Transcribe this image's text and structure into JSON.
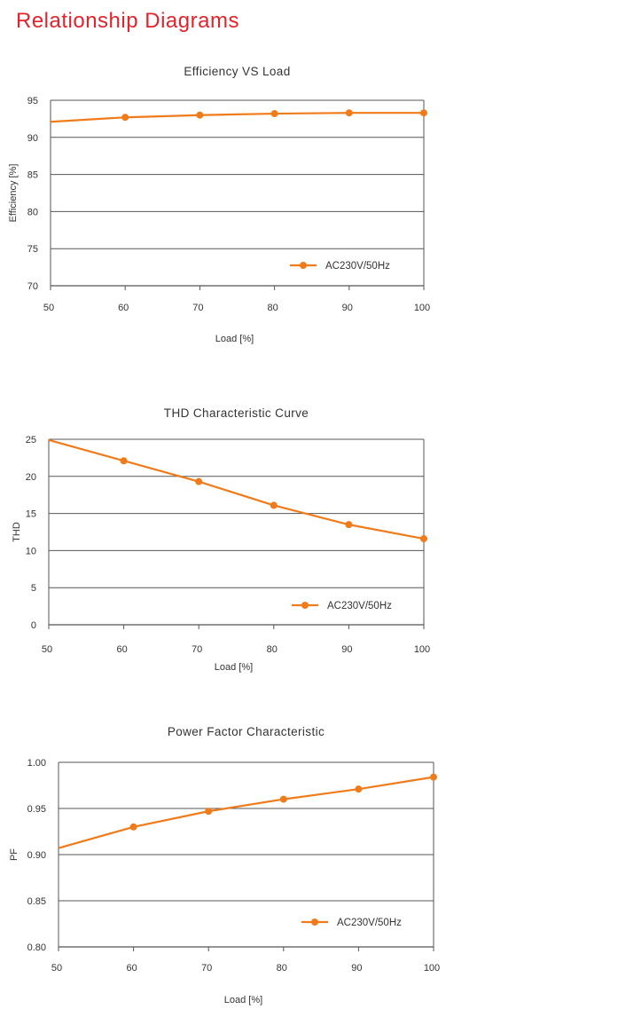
{
  "page": {
    "title": "Relationship Diagrams",
    "title_color": "#e0242c"
  },
  "colors": {
    "series": "#ef7b1a",
    "axis": "#555555",
    "grid": "#555555"
  },
  "chart_data": [
    {
      "type": "line",
      "title": "Efficiency VS Load",
      "xlabel": "Load [%]",
      "ylabel": "Efficiency [%]",
      "xlim": [
        50,
        100
      ],
      "ylim": [
        70,
        95
      ],
      "xticks": [
        50,
        60,
        70,
        80,
        90,
        100
      ],
      "yticks": [
        70,
        75,
        80,
        85,
        90,
        95
      ],
      "xtick_labels": [
        "50",
        "60",
        "70",
        "80",
        "90",
        "100"
      ],
      "ytick_labels": [
        "70",
        "75",
        "80",
        "85",
        "90",
        "95"
      ],
      "grid": "horizontal",
      "legend_position": "bottom-right",
      "series": [
        {
          "name": "AC230V/50Hz",
          "x": [
            50,
            60,
            70,
            80,
            90,
            100
          ],
          "y": [
            92.1,
            92.7,
            93.0,
            93.2,
            93.3,
            93.3
          ],
          "markers": [
            false,
            true,
            true,
            true,
            true,
            true
          ]
        }
      ]
    },
    {
      "type": "line",
      "title": "THD Characteristic Curve",
      "xlabel": "Load [%]",
      "ylabel": "THD",
      "xlim": [
        50,
        100
      ],
      "ylim": [
        0,
        25
      ],
      "xticks": [
        50,
        60,
        70,
        80,
        90,
        100
      ],
      "yticks": [
        0,
        5,
        10,
        15,
        20,
        25
      ],
      "xtick_labels": [
        "50",
        "60",
        "70",
        "80",
        "90",
        "100"
      ],
      "ytick_labels": [
        "0",
        "5",
        "10",
        "15",
        "20",
        "25"
      ],
      "grid": "horizontal",
      "legend_position": "bottom-right",
      "series": [
        {
          "name": "AC230V/50Hz",
          "x": [
            50,
            60,
            70,
            80,
            90,
            100
          ],
          "y": [
            24.9,
            22.1,
            19.3,
            16.1,
            13.5,
            11.6
          ],
          "markers": [
            false,
            true,
            true,
            true,
            true,
            true
          ]
        }
      ]
    },
    {
      "type": "line",
      "title": "Power Factor Characteristic",
      "xlabel": "Load [%]",
      "ylabel": "PF",
      "xlim": [
        50,
        100
      ],
      "ylim": [
        0.8,
        1.0
      ],
      "xticks": [
        50,
        60,
        70,
        80,
        90,
        100
      ],
      "yticks": [
        0.8,
        0.85,
        0.9,
        0.95,
        1.0
      ],
      "xtick_labels": [
        "50",
        "60",
        "70",
        "80",
        "90",
        "100"
      ],
      "ytick_labels": [
        "0.80",
        "0.85",
        "0.90",
        "0.95",
        "1.00"
      ],
      "grid": "horizontal",
      "legend_position": "bottom-right",
      "series": [
        {
          "name": "AC230V/50Hz",
          "x": [
            50,
            60,
            70,
            80,
            90,
            100
          ],
          "y": [
            0.907,
            0.93,
            0.947,
            0.96,
            0.971,
            0.984
          ],
          "markers": [
            false,
            true,
            true,
            true,
            true,
            true
          ]
        }
      ]
    }
  ]
}
